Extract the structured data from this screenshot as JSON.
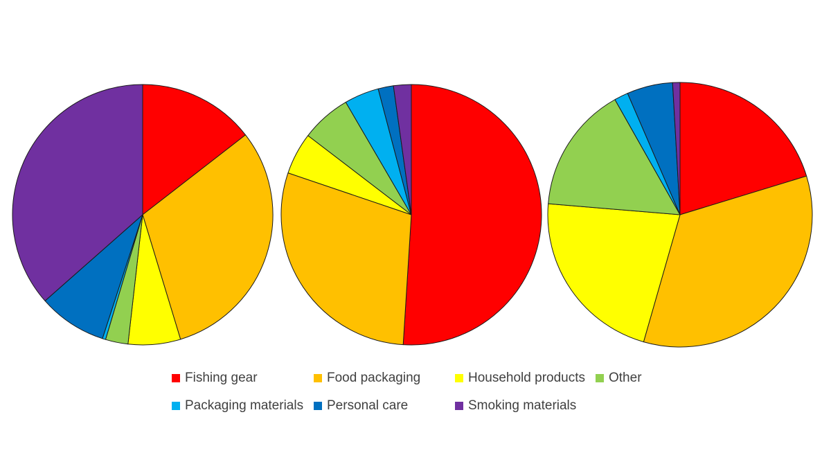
{
  "chart_data": [
    {
      "type": "pie",
      "title": "",
      "start_angle_deg": 0,
      "direction": "clockwise",
      "slices": [
        {
          "label": "Fishing gear",
          "value": 14.5,
          "color": "#ff0000"
        },
        {
          "label": "Food packaging",
          "value": 30.8,
          "color": "#ffc000"
        },
        {
          "label": "Household products",
          "value": 6.5,
          "color": "#ffff00"
        },
        {
          "label": "Other",
          "value": 2.8,
          "color": "#92d050"
        },
        {
          "label": "Packaging materials",
          "value": 0.4,
          "color": "#00b0f0"
        },
        {
          "label": "Personal care",
          "value": 8.5,
          "color": "#0070c0"
        },
        {
          "label": "Smoking materials",
          "value": 36.5,
          "color": "#7030a0"
        }
      ]
    },
    {
      "type": "pie",
      "title": "",
      "start_angle_deg": 0,
      "direction": "clockwise",
      "slices": [
        {
          "label": "Fishing gear",
          "value": 51.0,
          "color": "#ff0000"
        },
        {
          "label": "Food packaging",
          "value": 29.2,
          "color": "#ffc000"
        },
        {
          "label": "Household products",
          "value": 5.2,
          "color": "#ffff00"
        },
        {
          "label": "Other",
          "value": 6.2,
          "color": "#92d050"
        },
        {
          "label": "Packaging materials",
          "value": 4.3,
          "color": "#00b0f0"
        },
        {
          "label": "Personal care",
          "value": 1.9,
          "color": "#0070c0"
        },
        {
          "label": "Smoking materials",
          "value": 2.2,
          "color": "#7030a0"
        }
      ]
    },
    {
      "type": "pie",
      "title": "",
      "start_angle_deg": 0,
      "direction": "clockwise",
      "slices": [
        {
          "label": "Fishing gear",
          "value": 20.3,
          "color": "#ff0000"
        },
        {
          "label": "Food packaging",
          "value": 34.2,
          "color": "#ffc000"
        },
        {
          "label": "Household products",
          "value": 21.9,
          "color": "#ffff00"
        },
        {
          "label": "Other",
          "value": 15.5,
          "color": "#92d050"
        },
        {
          "label": "Packaging materials",
          "value": 1.7,
          "color": "#00b0f0"
        },
        {
          "label": "Personal care",
          "value": 5.6,
          "color": "#0070c0"
        },
        {
          "label": "Smoking materials",
          "value": 0.9,
          "color": "#7030a0"
        }
      ]
    }
  ],
  "legend": {
    "placement": "bottom",
    "items": [
      {
        "label": "Fishing gear",
        "color": "#ff0000"
      },
      {
        "label": "Food packaging",
        "color": "#ffc000"
      },
      {
        "label": "Household products",
        "color": "#ffff00"
      },
      {
        "label": "Other",
        "color": "#92d050"
      },
      {
        "label": "Packaging materials",
        "color": "#00b0f0"
      },
      {
        "label": "Personal care",
        "color": "#0070c0"
      },
      {
        "label": "Smoking materials",
        "color": "#7030a0"
      }
    ]
  }
}
